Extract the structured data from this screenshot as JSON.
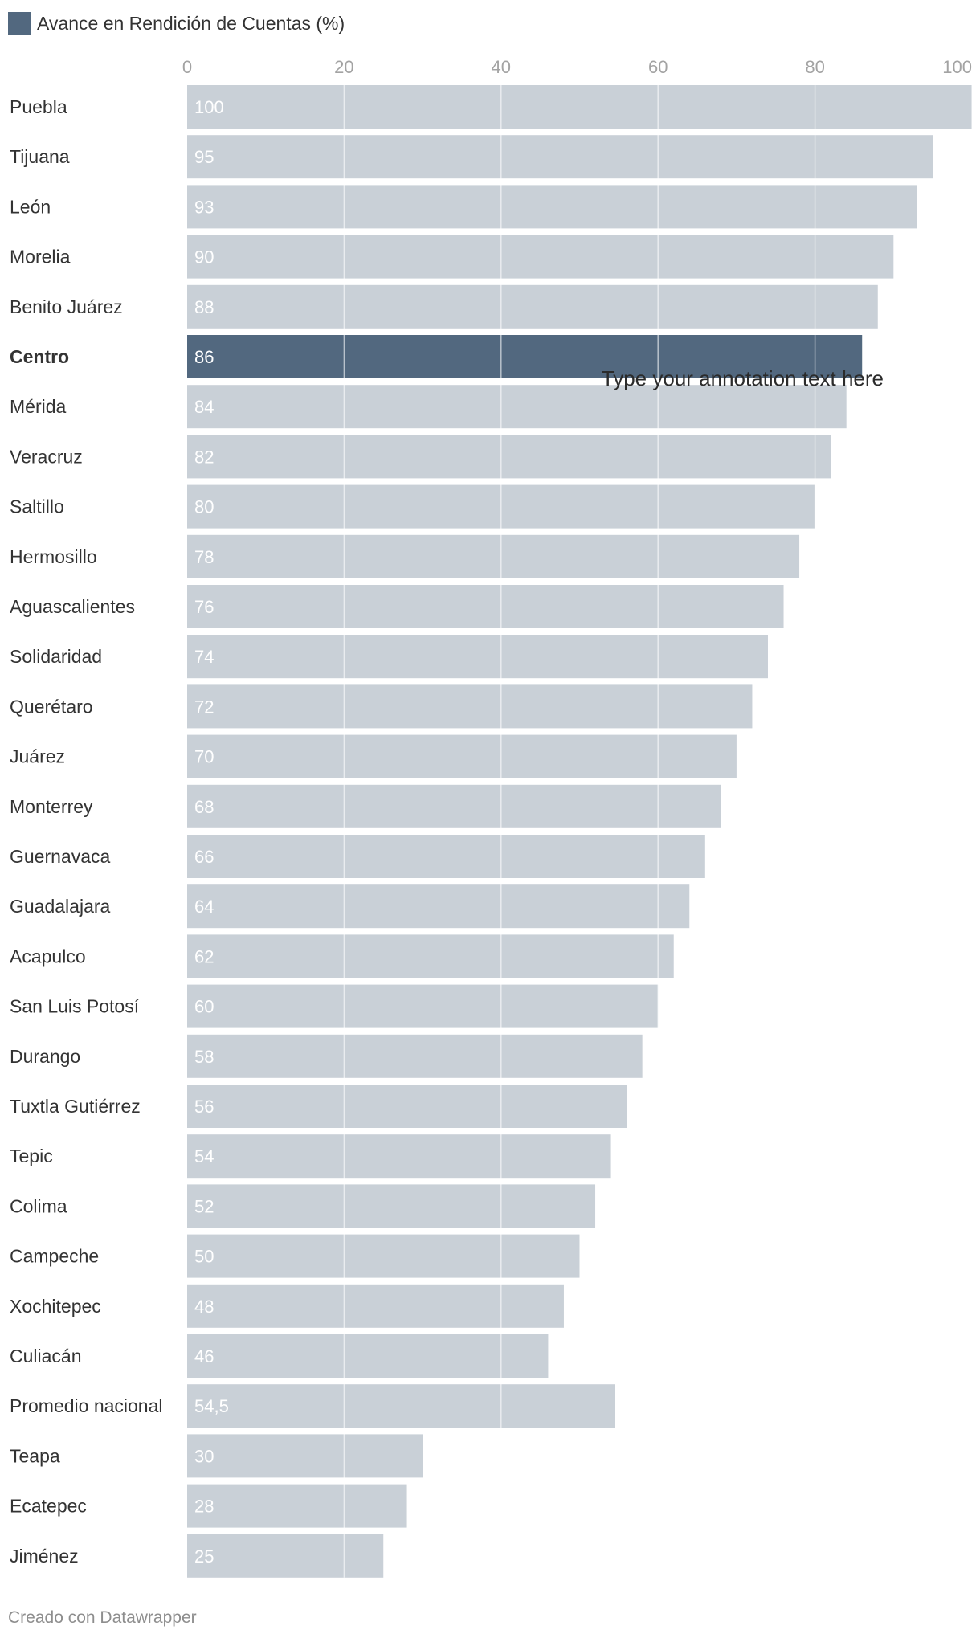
{
  "chart_data": {
    "type": "bar",
    "orientation": "horizontal",
    "legend": {
      "label": "Avance en Rendición de Cuentas (%)",
      "color": "#52687f",
      "placement": "top-left"
    },
    "xlim": [
      0,
      100
    ],
    "ticks": [
      0,
      20,
      40,
      60,
      80,
      100
    ],
    "bar_color": "#c9d0d7",
    "highlight_color": "#52687f",
    "grid": true,
    "categories": [
      "Puebla",
      "Tijuana",
      "León",
      "Morelia",
      "Benito Juárez",
      "Centro",
      "Mérida",
      "Veracruz",
      "Saltillo",
      "Hermosillo",
      "Aguascalientes",
      "Solidaridad",
      "Querétaro",
      "Juárez",
      "Monterrey",
      "Guernavaca",
      "Guadalajara",
      "Acapulco",
      "San Luis Potosí",
      "Durango",
      "Tuxtla Gutiérrez",
      "Tepic",
      "Colima",
      "Campeche",
      "Xochitepec",
      "Culiacán",
      "Promedio nacional",
      "Teapa",
      "Ecatepec",
      "Jiménez"
    ],
    "values": [
      100,
      95,
      93,
      90,
      88,
      86,
      84,
      82,
      80,
      78,
      76,
      74,
      72,
      70,
      68,
      66,
      64,
      62,
      60,
      58,
      56,
      54,
      52,
      50,
      48,
      46,
      54.5,
      30,
      28,
      25
    ],
    "value_labels": [
      "100",
      "95",
      "93",
      "90",
      "88",
      "86",
      "84",
      "82",
      "80",
      "78",
      "76",
      "74",
      "72",
      "70",
      "68",
      "66",
      "64",
      "62",
      "60",
      "58",
      "56",
      "54",
      "52",
      "50",
      "48",
      "46",
      "54,5",
      "30",
      "28",
      "25"
    ],
    "highlight": [
      "Centro"
    ],
    "annotation": {
      "text": "Type your annotation text here",
      "near": "Centro"
    }
  },
  "footer": {
    "credit": "Creado con Datawrapper"
  }
}
